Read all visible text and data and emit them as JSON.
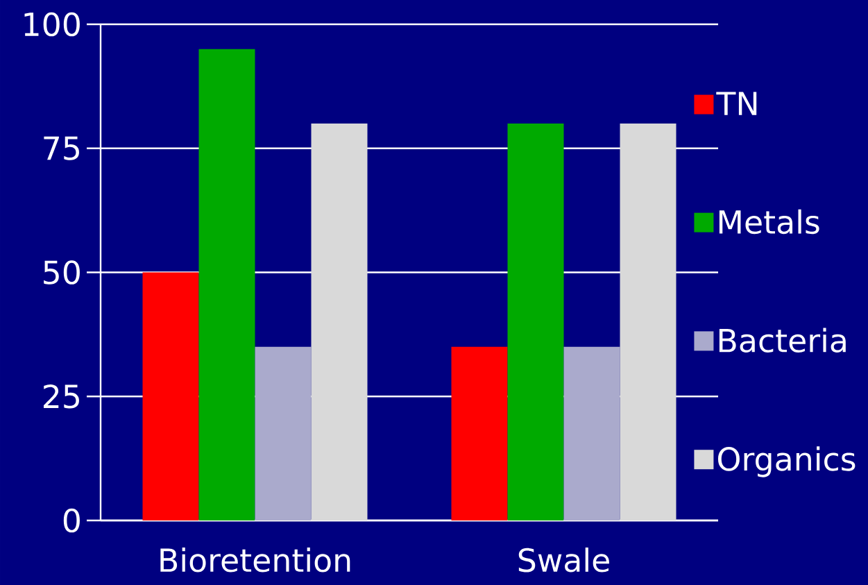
{
  "chart_data": {
    "type": "bar",
    "categories": [
      "Bioretention",
      "Swale"
    ],
    "series": [
      {
        "name": "TN",
        "color": "#ff0000",
        "values": [
          50,
          35
        ]
      },
      {
        "name": "Metals",
        "color": "#00aa00",
        "values": [
          95,
          80
        ]
      },
      {
        "name": "Bacteria",
        "color": "#aaaacc",
        "values": [
          35,
          35
        ]
      },
      {
        "name": "Organics",
        "color": "#d9d9d9",
        "values": [
          80,
          80
        ]
      }
    ],
    "ylim": [
      0,
      100
    ],
    "yticks": [
      0,
      25,
      50,
      75,
      100
    ],
    "grid": "y",
    "legend": "right"
  }
}
